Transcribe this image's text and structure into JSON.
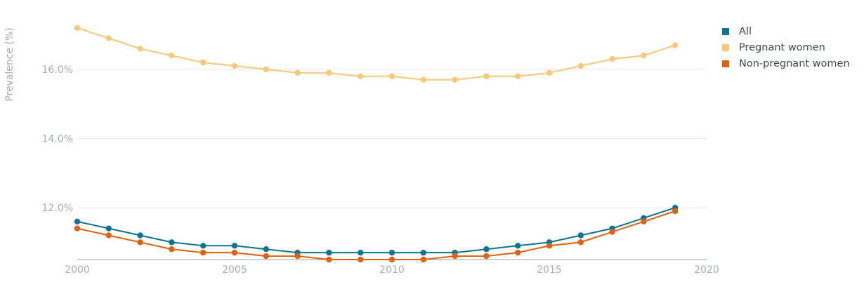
{
  "chart_data": {
    "type": "line",
    "title": "",
    "xlabel": "",
    "ylabel": "Prevalence (%)",
    "xlim": [
      2000,
      2020
    ],
    "ylim": [
      10.5,
      17.5
    ],
    "x_ticks": [
      "2000",
      "2005",
      "2010",
      "2015",
      "2020"
    ],
    "y_ticks": [
      {
        "value": 12,
        "label": "12.0%"
      },
      {
        "value": 14,
        "label": "14.0%"
      },
      {
        "value": 16,
        "label": "16.0%"
      }
    ],
    "grid": "horizontal",
    "legend_position": "top-right",
    "x": [
      2000,
      2001,
      2002,
      2003,
      2004,
      2005,
      2006,
      2007,
      2008,
      2009,
      2010,
      2011,
      2012,
      2013,
      2014,
      2015,
      2016,
      2017,
      2018,
      2019
    ],
    "series": [
      {
        "name": "All",
        "color": "#0e7490",
        "values": [
          11.6,
          11.4,
          11.2,
          11.0,
          10.9,
          10.9,
          10.8,
          10.7,
          10.7,
          10.7,
          10.7,
          10.7,
          10.7,
          10.8,
          10.9,
          11.0,
          11.2,
          11.4,
          11.7,
          12.0
        ]
      },
      {
        "name": "Pregnant women",
        "color": "#f8c778",
        "values": [
          17.2,
          16.9,
          16.6,
          16.4,
          16.2,
          16.1,
          16.0,
          15.9,
          15.9,
          15.8,
          15.8,
          15.7,
          15.7,
          15.8,
          15.8,
          15.9,
          16.1,
          16.3,
          16.4,
          16.7
        ]
      },
      {
        "name": "Non-pregnant women",
        "color": "#e0620e",
        "values": [
          11.4,
          11.2,
          11.0,
          10.8,
          10.7,
          10.7,
          10.6,
          10.6,
          10.5,
          10.5,
          10.5,
          10.5,
          10.6,
          10.6,
          10.7,
          10.9,
          11.0,
          11.3,
          11.6,
          11.9
        ]
      }
    ]
  }
}
